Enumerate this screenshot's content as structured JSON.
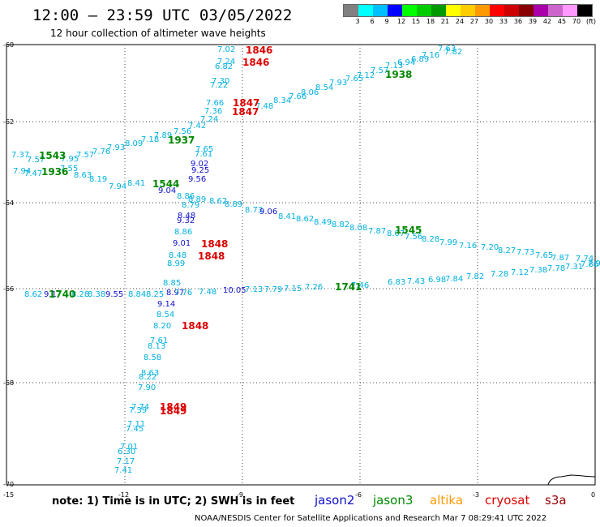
{
  "title": "12:00 – 23:59 UTC 03/05/2022",
  "subtitle": "12 hour collection of altimeter wave heights",
  "legend": {
    "colors": [
      "#808080",
      "#00ffff",
      "#00bfff",
      "#0000ff",
      "#00ff00",
      "#00cc00",
      "#009900",
      "#ffff00",
      "#ffcc00",
      "#ff9900",
      "#ff0000",
      "#cc0000",
      "#880000",
      "#aa00aa",
      "#cc66cc",
      "#ff99ff",
      "#000000"
    ],
    "ticks": [
      "3",
      "6",
      "9",
      "12",
      "15",
      "18",
      "21",
      "24",
      "27",
      "30",
      "33",
      "36",
      "39",
      "42",
      "45",
      "70",
      "(ft)"
    ]
  },
  "axes": {
    "lat_labels": [
      "-60",
      "-62",
      "-64",
      "-66",
      "-68",
      "-70"
    ],
    "lon_labels": [
      "-15",
      "-12",
      "-9",
      "-6",
      "-3",
      "0"
    ]
  },
  "note": "note:  1) Time is in UTC;  2) SWH is in feet",
  "satellites": [
    {
      "name": "jason2",
      "color": "#1010cc"
    },
    {
      "name": "jason3",
      "color": "#008800"
    },
    {
      "name": "altika",
      "color": "#ff9900"
    },
    {
      "name": "cryosat",
      "color": "#dd0000"
    },
    {
      "name": "s3a",
      "color": "#990000"
    }
  ],
  "footer": "NOAA/NESDIS Center for Satellite Applications and Research    Mar  7 08:29:41 UTC 2022",
  "points": [
    {
      "t": "7.02",
      "c": "#00b0e0"
    },
    {
      "t": "7.24",
      "c": "#00b0e0"
    },
    {
      "t": "6.82",
      "c": "#00b0e0"
    },
    {
      "t": "7.30",
      "c": "#00b0e0"
    },
    {
      "t": "7.22",
      "c": "#00b0e0"
    },
    {
      "t": "7.66",
      "c": "#00b0e0"
    },
    {
      "t": "7.36",
      "c": "#00b0e0"
    },
    {
      "t": "7.24",
      "c": "#00b0e0"
    },
    {
      "t": "7.42",
      "c": "#00b0e0"
    },
    {
      "t": "7.56",
      "c": "#00b0e0"
    },
    {
      "t": "7.89",
      "c": "#00b0e0"
    },
    {
      "t": "7.18",
      "c": "#00b0e0"
    },
    {
      "t": "8.09",
      "c": "#00b0e0"
    },
    {
      "t": "7.93",
      "c": "#00b0e0"
    },
    {
      "t": "7.76",
      "c": "#00b0e0"
    },
    {
      "t": "7.57",
      "c": "#00b0e0"
    },
    {
      "t": "7.95",
      "c": "#00b0e0"
    },
    {
      "t": "7.37",
      "c": "#00b0e0"
    },
    {
      "t": "7.57",
      "c": "#00b0e0"
    },
    {
      "t": "7.94",
      "c": "#00b0e0"
    },
    {
      "t": "7.47",
      "c": "#00b0e0"
    },
    {
      "t": "8.63",
      "c": "#00b0e0"
    },
    {
      "t": "8.19",
      "c": "#00b0e0"
    },
    {
      "t": "8.41",
      "c": "#00b0e0"
    },
    {
      "t": "7.94",
      "c": "#00b0e0"
    },
    {
      "t": "7.55",
      "c": "#00b0e0"
    },
    {
      "t": "7.65",
      "c": "#00b0e0"
    },
    {
      "t": "7.61",
      "c": "#00b0e0"
    },
    {
      "t": "9.02",
      "c": "#1010cc"
    },
    {
      "t": "9.25",
      "c": "#1010cc"
    },
    {
      "t": "9.56",
      "c": "#1010cc"
    },
    {
      "t": "9.04",
      "c": "#1010cc"
    },
    {
      "t": "8.86",
      "c": "#00b0e0"
    },
    {
      "t": "8.89",
      "c": "#00b0e0"
    },
    {
      "t": "8.79",
      "c": "#00b0e0"
    },
    {
      "t": "8.48",
      "c": "#1010cc"
    },
    {
      "t": "9.32",
      "c": "#1010cc"
    },
    {
      "t": "8.86",
      "c": "#00b0e0"
    },
    {
      "t": "9.01",
      "c": "#1010cc"
    },
    {
      "t": "8.48",
      "c": "#00b0e0"
    },
    {
      "t": "8.99",
      "c": "#00b0e0"
    },
    {
      "t": "8.62",
      "c": "#00b0e0"
    },
    {
      "t": "8.89",
      "c": "#00b0e0"
    },
    {
      "t": "8.73",
      "c": "#00b0e0"
    },
    {
      "t": "9.06",
      "c": "#1010cc"
    },
    {
      "t": "8.41",
      "c": "#00b0e0"
    },
    {
      "t": "8.62",
      "c": "#00b0e0"
    },
    {
      "t": "8.49",
      "c": "#00b0e0"
    },
    {
      "t": "8.82",
      "c": "#00b0e0"
    },
    {
      "t": "8.08",
      "c": "#00b0e0"
    },
    {
      "t": "7.87",
      "c": "#00b0e0"
    },
    {
      "t": "8.07",
      "c": "#00b0e0"
    },
    {
      "t": "7.56",
      "c": "#00b0e0"
    },
    {
      "t": "8.28",
      "c": "#00b0e0"
    },
    {
      "t": "7.99",
      "c": "#00b0e0"
    },
    {
      "t": "7.16",
      "c": "#00b0e0"
    },
    {
      "t": "7.20",
      "c": "#00b0e0"
    },
    {
      "t": "8.27",
      "c": "#00b0e0"
    },
    {
      "t": "7.73",
      "c": "#00b0e0"
    },
    {
      "t": "7.65",
      "c": "#00b0e0"
    },
    {
      "t": "7.87",
      "c": "#00b0e0"
    },
    {
      "t": "7.74",
      "c": "#00b0e0"
    },
    {
      "t": "7.96",
      "c": "#00b0e0"
    },
    {
      "t": "8.62",
      "c": "#00b0e0"
    },
    {
      "t": "9.17",
      "c": "#1010cc"
    },
    {
      "t": "8.28",
      "c": "#00b0e0"
    },
    {
      "t": "8.38",
      "c": "#00b0e0"
    },
    {
      "t": "9.55",
      "c": "#1010cc"
    },
    {
      "t": "8.84",
      "c": "#00b0e0"
    },
    {
      "t": "8.25",
      "c": "#00b0e0"
    },
    {
      "t": "8.85",
      "c": "#00b0e0"
    },
    {
      "t": "8.97",
      "c": "#1010cc"
    },
    {
      "t": "7.76",
      "c": "#00b0e0"
    },
    {
      "t": "7.48",
      "c": "#00b0e0"
    },
    {
      "t": "10.05",
      "c": "#1010cc"
    },
    {
      "t": "7.13",
      "c": "#00b0e0"
    },
    {
      "t": "7.79",
      "c": "#00b0e0"
    },
    {
      "t": "7.15",
      "c": "#00b0e0"
    },
    {
      "t": "7.26",
      "c": "#00b0e0"
    },
    {
      "t": "7.46",
      "c": "#00b0e0"
    },
    {
      "t": "6.83",
      "c": "#00b0e0"
    },
    {
      "t": "7.43",
      "c": "#00b0e0"
    },
    {
      "t": "6.98",
      "c": "#00b0e0"
    },
    {
      "t": "7.84",
      "c": "#00b0e0"
    },
    {
      "t": "7.82",
      "c": "#00b0e0"
    },
    {
      "t": "7.28",
      "c": "#00b0e0"
    },
    {
      "t": "7.12",
      "c": "#00b0e0"
    },
    {
      "t": "7.38",
      "c": "#00b0e0"
    },
    {
      "t": "7.78",
      "c": "#00b0e0"
    },
    {
      "t": "7.31",
      "c": "#00b0e0"
    },
    {
      "t": "7.86",
      "c": "#00b0e0"
    },
    {
      "t": "9.14",
      "c": "#1010cc"
    },
    {
      "t": "8.54",
      "c": "#00b0e0"
    },
    {
      "t": "8.20",
      "c": "#00b0e0"
    },
    {
      "t": "7.61",
      "c": "#00b0e0"
    },
    {
      "t": "8.13",
      "c": "#00b0e0"
    },
    {
      "t": "8.58",
      "c": "#00b0e0"
    },
    {
      "t": "8.63",
      "c": "#00b0e0"
    },
    {
      "t": "8.22",
      "c": "#00b0e0"
    },
    {
      "t": "7.90",
      "c": "#00b0e0"
    },
    {
      "t": "7.74",
      "c": "#00b0e0"
    },
    {
      "t": "7.39",
      "c": "#00b0e0"
    },
    {
      "t": "7.11",
      "c": "#00b0e0"
    },
    {
      "t": "7.45",
      "c": "#00b0e0"
    },
    {
      "t": "7.01",
      "c": "#00b0e0"
    },
    {
      "t": "6.30",
      "c": "#00b0e0"
    },
    {
      "t": "7.17",
      "c": "#00b0e0"
    },
    {
      "t": "7.41",
      "c": "#00b0e0"
    },
    {
      "t": "7.48",
      "c": "#00b0e0"
    },
    {
      "t": "8.34",
      "c": "#00b0e0"
    },
    {
      "t": "7.66",
      "c": "#00b0e0"
    },
    {
      "t": "8.06",
      "c": "#00b0e0"
    },
    {
      "t": "8.54",
      "c": "#00b0e0"
    },
    {
      "t": "7.93",
      "c": "#00b0e0"
    },
    {
      "t": "7.65",
      "c": "#00b0e0"
    },
    {
      "t": "7.12",
      "c": "#00b0e0"
    },
    {
      "t": "7.57",
      "c": "#00b0e0"
    },
    {
      "t": "7.13",
      "c": "#00b0e0"
    },
    {
      "t": "6.94",
      "c": "#00b0e0"
    },
    {
      "t": "6.89",
      "c": "#00b0e0"
    },
    {
      "t": "7.16",
      "c": "#00b0e0"
    },
    {
      "t": "7.63",
      "c": "#00b0e0"
    },
    {
      "t": "7.82",
      "c": "#00b0e0"
    }
  ],
  "times": [
    {
      "t": "1846",
      "c": "#dd0000"
    },
    {
      "t": "1846",
      "c": "#dd0000"
    },
    {
      "t": "1847",
      "c": "#dd0000"
    },
    {
      "t": "1847",
      "c": "#dd0000"
    },
    {
      "t": "1938",
      "c": "#008800"
    },
    {
      "t": "1937",
      "c": "#008800"
    },
    {
      "t": "1543",
      "c": "#008800"
    },
    {
      "t": "1936",
      "c": "#008800"
    },
    {
      "t": "1544",
      "c": "#008800"
    },
    {
      "t": "1545",
      "c": "#008800"
    },
    {
      "t": "1848",
      "c": "#dd0000"
    },
    {
      "t": "1848",
      "c": "#dd0000"
    },
    {
      "t": "1740",
      "c": "#008800"
    },
    {
      "t": "1741",
      "c": "#008800"
    },
    {
      "t": "1848",
      "c": "#dd0000"
    },
    {
      "t": "1849",
      "c": "#dd0000"
    },
    {
      "t": "1849",
      "c": "#dd0000"
    }
  ]
}
